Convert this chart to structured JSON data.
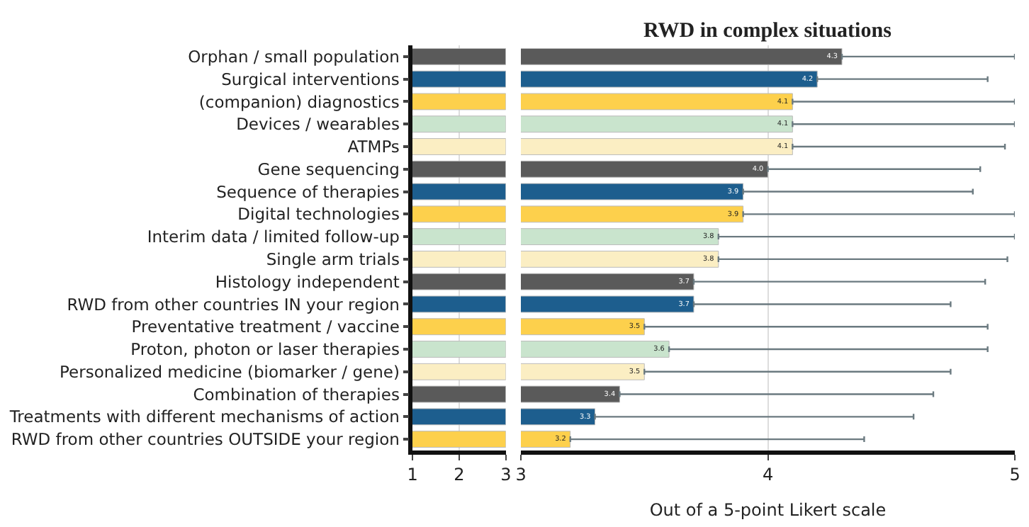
{
  "chart_data": [
    {
      "type": "bar",
      "orientation": "horizontal",
      "categories": [
        "Orphan / small population",
        "Surgical interventions",
        "(companion) diagnostics",
        "Devices / wearables",
        "ATMPs",
        "Gene sequencing",
        "Sequence of therapies",
        "Digital technologies",
        "Interim data / limited follow-up",
        "Single arm trials",
        "Histology independent",
        "RWD from other countries IN your region",
        "Preventative treatment / vaccine",
        "Proton, photon or laser therapies",
        "Personalized medicine (biomarker / gene)",
        "Combination of therapies",
        "Treatments with different mechanisms of action",
        "RWD from other countries OUTSIDE your region"
      ],
      "series": [
        {
          "values": [
            3,
            3,
            3,
            3,
            3,
            3,
            3,
            3,
            3,
            3,
            3,
            3,
            3,
            3,
            3,
            3,
            3,
            3
          ],
          "colors": [
            "#5a5a5a",
            "#1d5e8e",
            "#fdd04c",
            "#c9e4cd",
            "#fbeec3",
            "#5a5a5a",
            "#1d5e8e",
            "#fdd04c",
            "#c9e4cd",
            "#fbeec3",
            "#5a5a5a",
            "#1d5e8e",
            "#fdd04c",
            "#c9e4cd",
            "#fbeec3",
            "#5a5a5a",
            "#1d5e8e",
            "#fdd04c"
          ]
        }
      ],
      "xlim": [
        1,
        3
      ],
      "xticks": [
        1,
        2,
        3
      ],
      "grid": "x"
    },
    {
      "type": "bar",
      "orientation": "horizontal",
      "title": "RWD in complex situations",
      "xlabel": "Out of a 5-point Likert scale",
      "categories": [
        null,
        null,
        null,
        null,
        null,
        null,
        null,
        null,
        null,
        null,
        null,
        null,
        null,
        null,
        null,
        null,
        null,
        null
      ],
      "series": [
        {
          "values": [
            4.3,
            4.2,
            4.1,
            4.1,
            4.1,
            4.0,
            3.9,
            3.9,
            3.8,
            3.8,
            3.7,
            3.7,
            3.5,
            3.6,
            3.5,
            3.4,
            3.3,
            3.2
          ],
          "value_labels": [
            "4.3",
            "4.2",
            "4.1",
            "4.1",
            "4.1",
            "4.0",
            "3.9",
            "3.9",
            "3.8",
            "3.8",
            "3.7",
            "3.7",
            "3.5",
            "3.6",
            "3.5",
            "3.4",
            "3.3",
            "3.2"
          ],
          "errors": [
            [
              4.3,
              5.0
            ],
            [
              4.2,
              4.89
            ],
            [
              4.1,
              5.0
            ],
            [
              4.1,
              5.0
            ],
            [
              4.1,
              4.96
            ],
            [
              4.0,
              4.86
            ],
            [
              3.9,
              4.83
            ],
            [
              3.9,
              5.0
            ],
            [
              3.8,
              5.0
            ],
            [
              3.8,
              4.97
            ],
            [
              3.7,
              4.88
            ],
            [
              3.7,
              4.74
            ],
            [
              3.5,
              4.89
            ],
            [
              3.6,
              4.89
            ],
            [
              3.5,
              4.74
            ],
            [
              3.4,
              4.67
            ],
            [
              3.3,
              4.59
            ],
            [
              3.2,
              4.39
            ]
          ],
          "colors": [
            "#5a5a5a",
            "#1d5e8e",
            "#fdd04c",
            "#c9e4cd",
            "#fbeec3",
            "#5a5a5a",
            "#1d5e8e",
            "#fdd04c",
            "#c9e4cd",
            "#fbeec3",
            "#5a5a5a",
            "#1d5e8e",
            "#fdd04c",
            "#c9e4cd",
            "#fbeec3",
            "#5a5a5a",
            "#1d5e8e",
            "#fdd04c"
          ]
        }
      ],
      "xlim": [
        3,
        5
      ],
      "xticks": [
        3,
        4,
        5
      ],
      "grid": "x",
      "tick_labels": "x"
    }
  ]
}
